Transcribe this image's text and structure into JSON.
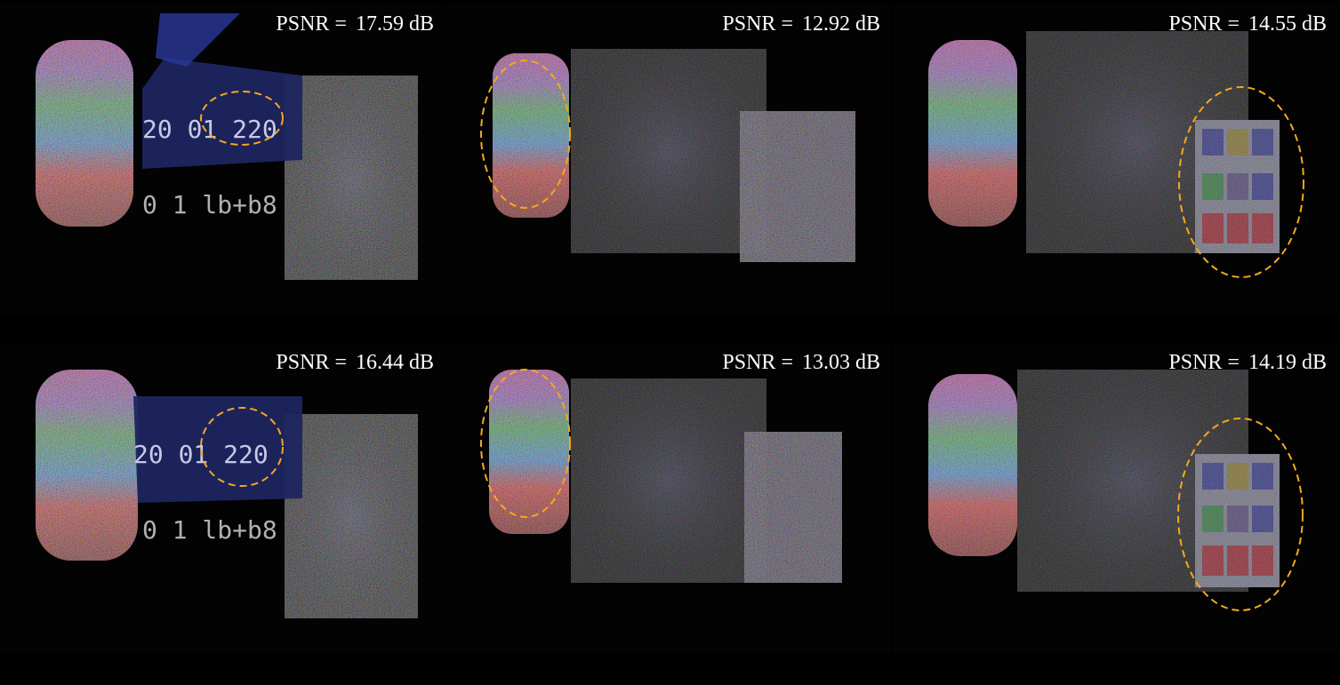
{
  "panels": [
    {
      "psnr_label": "PSNR =",
      "psnr_value": "17.59 dB"
    },
    {
      "psnr_label": "PSNR =",
      "psnr_value": "12.92 dB"
    },
    {
      "psnr_label": "PSNR =",
      "psnr_value": "14.55 dB"
    },
    {
      "psnr_label": "PSNR =",
      "psnr_value": "16.44 dB"
    },
    {
      "psnr_label": "PSNR =",
      "psnr_value": "13.03 dB"
    },
    {
      "psnr_label": "PSNR =",
      "psnr_value": "14.19 dB"
    }
  ],
  "sign_text": "20 01 220",
  "plate_text": "0 1 lb+b8",
  "highlight_color": "#f5a81c"
}
